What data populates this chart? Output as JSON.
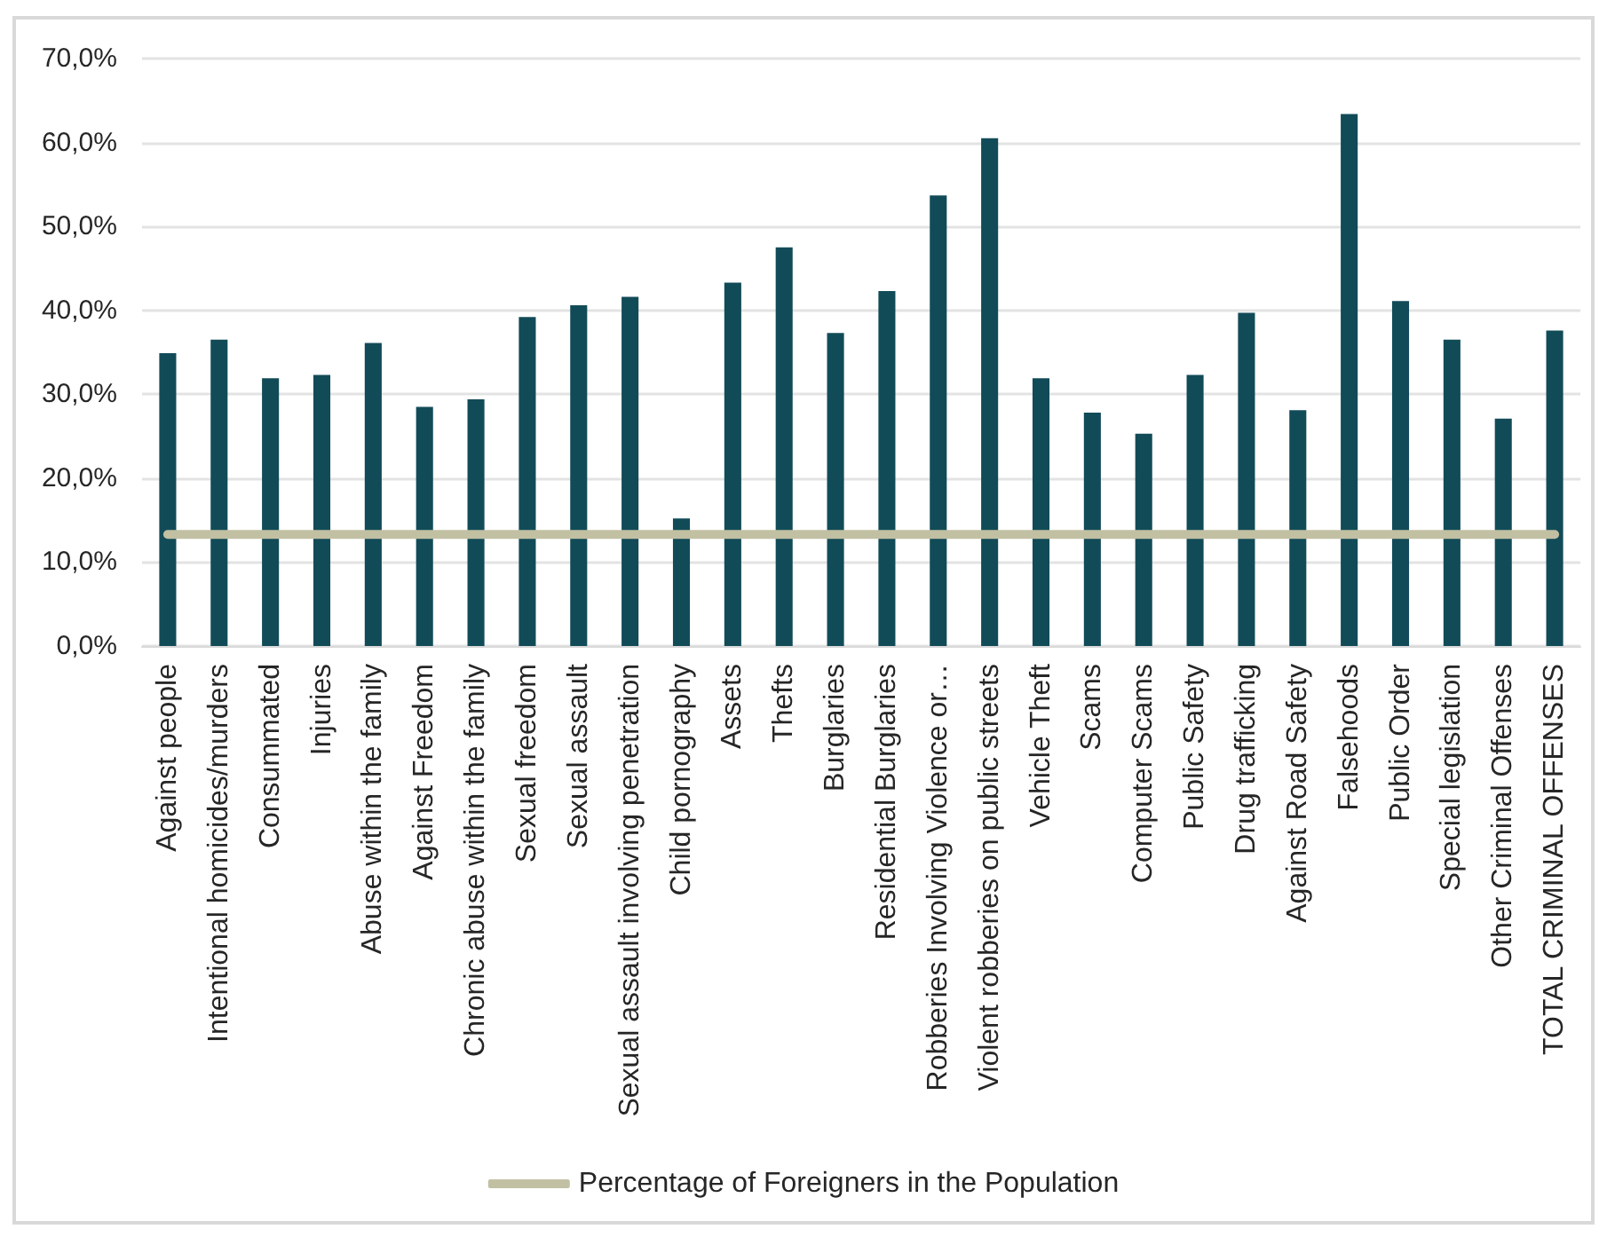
{
  "chart_data": {
    "type": "bar",
    "categories": [
      "Against people",
      "Intentional homicides/murders",
      "Consummated",
      "Injuries",
      "Abuse within the family",
      "Against Freedom",
      "Chronic abuse within the family",
      "Sexual freedom",
      "Sexual assault",
      "Sexual assault involving penetration",
      "Child pornography",
      "Assets",
      "Thefts",
      "Burglaries",
      "Residential Burglaries",
      "Robberies Involving Violence or…",
      "Violent robberies on public streets",
      "Vehicle Theft",
      "Scams",
      "Computer Scams",
      "Public Safety",
      "Drug trafficking",
      "Against Road Safety",
      "Falsehoods",
      "Public Order",
      "Special legislation",
      "Other Criminal Offenses",
      "TOTAL CRIMINAL OFFENSES"
    ],
    "series": [
      {
        "color": "#124b58",
        "values": [
          34.9,
          36.5,
          31.9,
          32.3,
          36.1,
          28.5,
          29.4,
          39.2,
          40.6,
          41.6,
          15.2,
          43.3,
          47.5,
          37.3,
          42.3,
          53.7,
          60.5,
          31.9,
          27.8,
          25.3,
          32.3,
          39.7,
          28.1,
          63.4,
          41.1,
          36.5,
          27.1,
          37.6
        ]
      },
      {
        "type": "line",
        "name": "Percentage of Foreigners in the Population",
        "color": "#c2c0a3",
        "values": [
          13.3,
          13.3,
          13.3,
          13.3,
          13.3,
          13.3,
          13.3,
          13.3,
          13.3,
          13.3,
          13.3,
          13.3,
          13.3,
          13.3,
          13.3,
          13.3,
          13.3,
          13.3,
          13.3,
          13.3,
          13.3,
          13.3,
          13.3,
          13.3,
          13.3,
          13.3,
          13.3,
          13.3
        ]
      }
    ],
    "ylim": [
      0,
      70
    ],
    "yticks": [
      {
        "value": 0,
        "label": "0,0%"
      },
      {
        "value": 10,
        "label": "10,0%"
      },
      {
        "value": 20,
        "label": "20,0%"
      },
      {
        "value": 30,
        "label": "30,0%"
      },
      {
        "value": 40,
        "label": "40,0%"
      },
      {
        "value": 50,
        "label": "50,0%"
      },
      {
        "value": 60,
        "label": "60,0%"
      },
      {
        "value": 70,
        "label": "70,0%"
      }
    ],
    "grid": "y",
    "legend": "bottom",
    "marker": "none",
    "line_style": "solid"
  }
}
